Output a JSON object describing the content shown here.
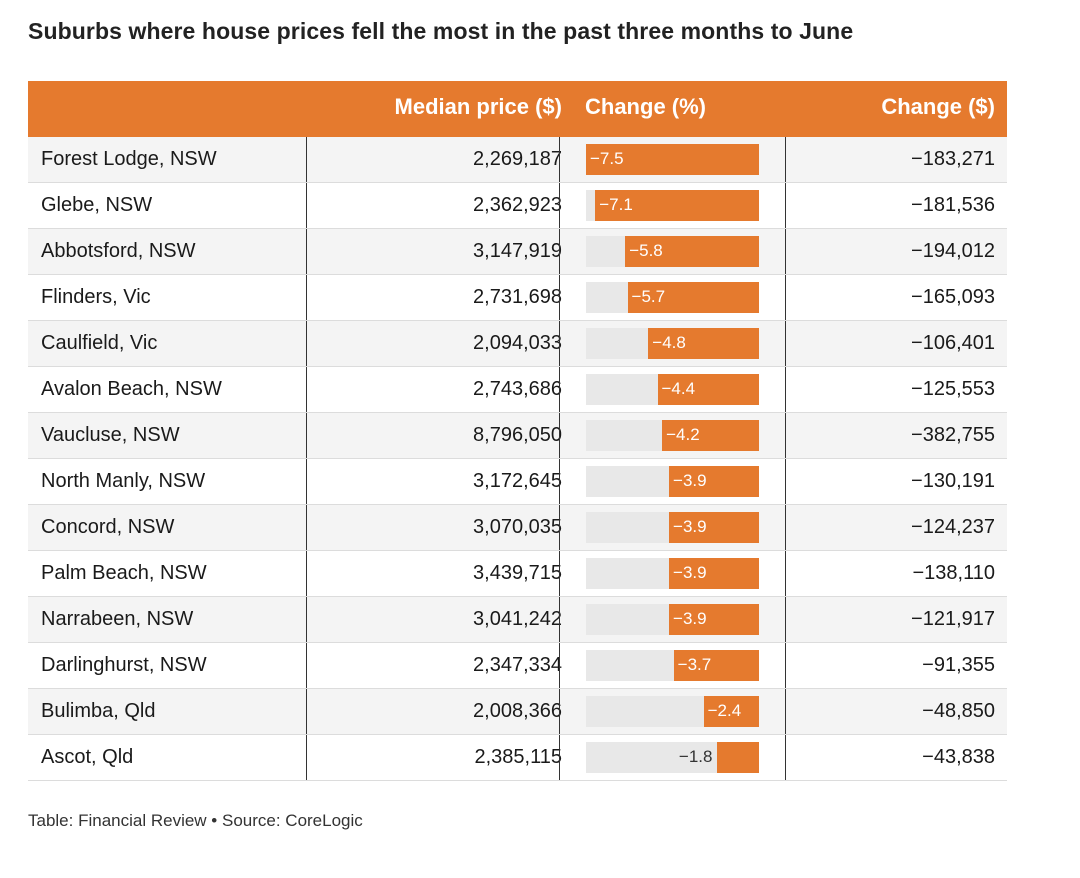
{
  "title": "Suburbs where house prices fell the most in the past three months to June",
  "headers": {
    "suburb": "",
    "price": "Median price ($)",
    "pct": "Change (%)",
    "dollar": "Change ($)"
  },
  "colors": {
    "accent": "#e57a2e",
    "track": "#e8e8e8"
  },
  "chart_data": {
    "type": "table",
    "title": "Suburbs where house prices fell the most in the past three months to June",
    "columns": [
      "",
      "Median price ($)",
      "Change (%)",
      "Change ($)"
    ],
    "bar_max": 7.5,
    "rows": [
      {
        "suburb": "Forest Lodge, NSW",
        "price": "2,269,187",
        "pct": -7.5,
        "pct_label": "−7.5",
        "dollar": "−183,271"
      },
      {
        "suburb": "Glebe, NSW",
        "price": "2,362,923",
        "pct": -7.1,
        "pct_label": "−7.1",
        "dollar": "−181,536"
      },
      {
        "suburb": "Abbotsford, NSW",
        "price": "3,147,919",
        "pct": -5.8,
        "pct_label": "−5.8",
        "dollar": "−194,012"
      },
      {
        "suburb": "Flinders, Vic",
        "price": "2,731,698",
        "pct": -5.7,
        "pct_label": "−5.7",
        "dollar": "−165,093"
      },
      {
        "suburb": "Caulfield, Vic",
        "price": "2,094,033",
        "pct": -4.8,
        "pct_label": "−4.8",
        "dollar": "−106,401"
      },
      {
        "suburb": "Avalon Beach, NSW",
        "price": "2,743,686",
        "pct": -4.4,
        "pct_label": "−4.4",
        "dollar": "−125,553"
      },
      {
        "suburb": "Vaucluse, NSW",
        "price": "8,796,050",
        "pct": -4.2,
        "pct_label": "−4.2",
        "dollar": "−382,755"
      },
      {
        "suburb": "North Manly, NSW",
        "price": "3,172,645",
        "pct": -3.9,
        "pct_label": "−3.9",
        "dollar": "−130,191"
      },
      {
        "suburb": "Concord, NSW",
        "price": "3,070,035",
        "pct": -3.9,
        "pct_label": "−3.9",
        "dollar": "−124,237"
      },
      {
        "suburb": "Palm Beach, NSW",
        "price": "3,439,715",
        "pct": -3.9,
        "pct_label": "−3.9",
        "dollar": "−138,110"
      },
      {
        "suburb": "Narrabeen, NSW",
        "price": "3,041,242",
        "pct": -3.9,
        "pct_label": "−3.9",
        "dollar": "−121,917"
      },
      {
        "suburb": "Darlinghurst, NSW",
        "price": "2,347,334",
        "pct": -3.7,
        "pct_label": "−3.7",
        "dollar": "−91,355"
      },
      {
        "suburb": "Bulimba, Qld",
        "price": "2,008,366",
        "pct": -2.4,
        "pct_label": "−2.4",
        "dollar": "−48,850"
      },
      {
        "suburb": "Ascot, Qld",
        "price": "2,385,115",
        "pct": -1.8,
        "pct_label": "−1.8",
        "dollar": "−43,838"
      }
    ]
  },
  "footer": "Table: Financial Review • Source: CoreLogic"
}
